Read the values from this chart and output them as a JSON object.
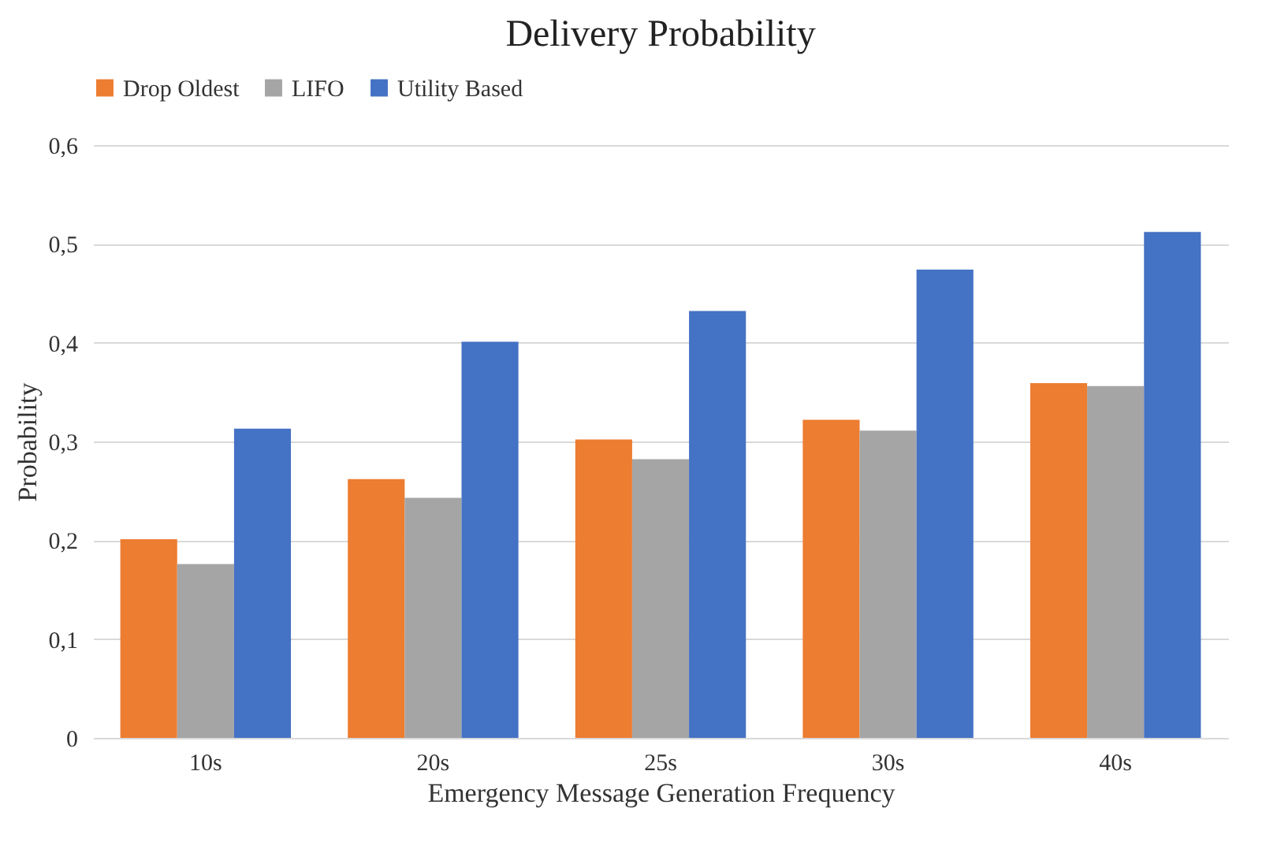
{
  "chart_data": {
    "type": "bar",
    "title": "Delivery Probability",
    "xlabel": "Emergency Message Generation Frequency",
    "ylabel": "Probability",
    "categories": [
      "10s",
      "20s",
      "25s",
      "30s",
      "40s"
    ],
    "series": [
      {
        "name": "Drop Oldest",
        "color": "#ed7d31",
        "values": [
          0.201,
          0.262,
          0.302,
          0.322,
          0.359
        ]
      },
      {
        "name": "LIFO",
        "color": "#a5a5a5",
        "values": [
          0.176,
          0.243,
          0.282,
          0.311,
          0.356
        ]
      },
      {
        "name": "Utility Based",
        "color": "#4472c4",
        "values": [
          0.313,
          0.401,
          0.432,
          0.474,
          0.512
        ]
      }
    ],
    "ylim": [
      0,
      0.6
    ],
    "yticks": [
      0,
      {
        "value": 0.1,
        "label": "0,1"
      },
      {
        "value": 0.2,
        "label": "0,2"
      },
      {
        "value": 0.3,
        "label": "0,3"
      },
      {
        "value": 0.4,
        "label": "0,4"
      },
      {
        "value": 0.5,
        "label": "0,5"
      },
      {
        "value": 0.6,
        "label": "0,6"
      }
    ],
    "grid": "y",
    "legend": "top"
  }
}
